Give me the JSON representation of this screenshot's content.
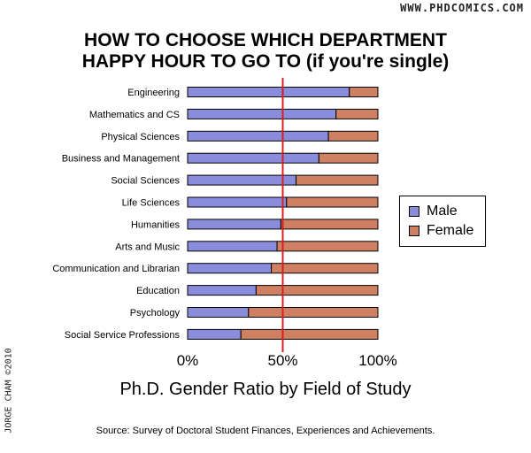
{
  "header": {
    "site": "WWW.PHDCOMICS.COM",
    "title_line1": "HOW TO CHOOSE WHICH DEPARTMENT",
    "title_line2": "HAPPY HOUR TO GO TO (if you're single)",
    "author": "JORGE CHAM ©2010"
  },
  "footer": {
    "subtitle": "Ph.D. Gender Ratio by Field of Study",
    "source": "Source: Survey of Doctoral Student Finances, Experiences and Achievements."
  },
  "colors": {
    "male": "#8a8cdc",
    "female": "#cf8062",
    "reference_line": "#d62020"
  },
  "chart_data": {
    "type": "bar",
    "orientation": "horizontal",
    "stacked": true,
    "categories": [
      "Engineering",
      "Mathematics and CS",
      "Physical Sciences",
      "Business and Management",
      "Social Sciences",
      "Life Sciences",
      "Humanities",
      "Arts and Music",
      "Communication and Librarian",
      "Education",
      "Psychology",
      "Social Service Professions"
    ],
    "series": [
      {
        "name": "Male",
        "values": [
          85,
          78,
          74,
          69,
          57,
          52,
          49,
          47,
          44,
          36,
          32,
          28
        ]
      },
      {
        "name": "Female",
        "values": [
          15,
          22,
          26,
          31,
          43,
          48,
          51,
          53,
          56,
          64,
          68,
          72
        ]
      }
    ],
    "xlim": [
      0,
      100
    ],
    "x_ticks": [
      "0%",
      "50%",
      "100%"
    ],
    "reference_line": 50,
    "legend_position": "right",
    "grid": false
  }
}
